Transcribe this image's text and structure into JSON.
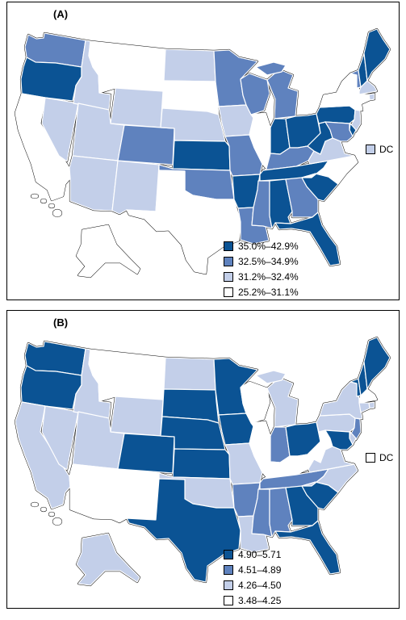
{
  "colors": {
    "c1": "#0b5394",
    "c2": "#5f82be",
    "c3": "#c3cfe9",
    "c4": "#ffffff",
    "outline": "#000000"
  },
  "panels": [
    {
      "label": "(A)",
      "dc_label": "DC",
      "dc_class": "c3",
      "legend": [
        {
          "class": "c1",
          "label": "35.0%–42.9%"
        },
        {
          "class": "c2",
          "label": "32.5%–34.9%"
        },
        {
          "class": "c3",
          "label": "31.2%–32.4%"
        },
        {
          "class": "c4",
          "label": "25.2%–31.1%"
        }
      ],
      "states": {
        "WA": "c2",
        "OR": "c1",
        "CA": "c4",
        "NV": "c3",
        "ID": "c3",
        "MT": "c4",
        "WY": "c3",
        "UT": "c3",
        "AZ": "c3",
        "NM": "c3",
        "CO": "c2",
        "ND": "c3",
        "SD": "c4",
        "NE": "c3",
        "KS": "c1",
        "OK": "c2",
        "TX": "c4",
        "MN": "c2",
        "IA": "c3",
        "MO": "c2",
        "AR": "c1",
        "LA": "c2",
        "WI": "c2",
        "IL": "c4",
        "MI": "c2",
        "IN": "c1",
        "OH": "c1",
        "KY": "c2",
        "TN": "c1",
        "MS": "c2",
        "AL": "c1",
        "GA": "c2",
        "FL": "c1",
        "SC": "c1",
        "NC": "c4",
        "VA": "c3",
        "WV": "c1",
        "PA": "c1",
        "NY": "c4",
        "VT": "c2",
        "NH": "c1",
        "ME": "c1",
        "MA": "c3",
        "RI": "c3",
        "CT": "c4",
        "NJ": "c3",
        "DE": "c1",
        "MD": "c2",
        "AK": "c4",
        "HI": "c4"
      }
    },
    {
      "label": "(B)",
      "dc_label": "DC",
      "dc_class": "c4",
      "legend": [
        {
          "class": "c1",
          "label": "4.90–5.71"
        },
        {
          "class": "c2",
          "label": "4.51–4.89"
        },
        {
          "class": "c3",
          "label": "4.26–4.50"
        },
        {
          "class": "c4",
          "label": "3.48–4.25"
        }
      ],
      "states": {
        "WA": "c1",
        "OR": "c1",
        "CA": "c3",
        "NV": "c3",
        "ID": "c3",
        "MT": "c4",
        "WY": "c3",
        "UT": "c3",
        "AZ": "c4",
        "NM": "c4",
        "CO": "c1",
        "ND": "c3",
        "SD": "c1",
        "NE": "c1",
        "KS": "c1",
        "OK": "c3",
        "TX": "c1",
        "MN": "c1",
        "IA": "c1",
        "MO": "c3",
        "AR": "c2",
        "LA": "c3",
        "WI": "c4",
        "IL": "c4",
        "MI": "c3",
        "IN": "c2",
        "OH": "c1",
        "KY": "c4",
        "TN": "c2",
        "MS": "c2",
        "AL": "c2",
        "GA": "c1",
        "FL": "c1",
        "SC": "c1",
        "NC": "c3",
        "VA": "c3",
        "WV": "c4",
        "PA": "c3",
        "NY": "c3",
        "VT": "c1",
        "NH": "c1",
        "ME": "c1",
        "MA": "c4",
        "RI": "c3",
        "CT": "c3",
        "NJ": "c2",
        "DE": "c3",
        "MD": "c1",
        "AK": "c3",
        "HI": "c4"
      }
    }
  ]
}
